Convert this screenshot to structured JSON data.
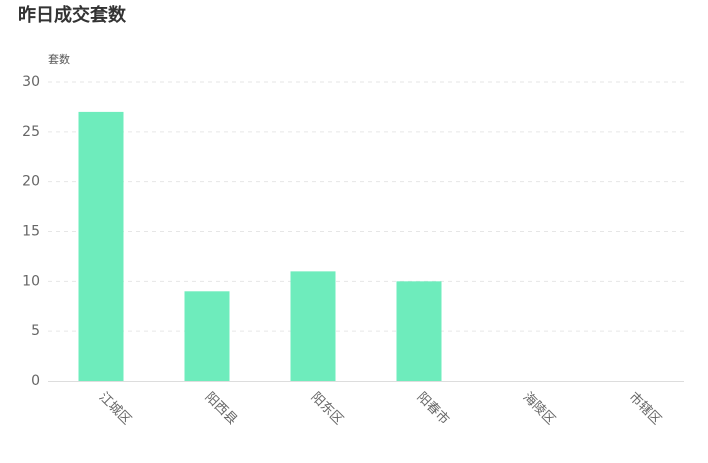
{
  "chart_data": {
    "type": "bar",
    "title": "昨日成交套数",
    "y_label": "套数",
    "categories": [
      "江城区",
      "阳西县",
      "阳东区",
      "阳春市",
      "海陵区",
      "市辖区"
    ],
    "values": [
      27,
      9,
      11,
      10,
      0,
      0
    ],
    "color": "#6eecbc",
    "ylim": [
      0,
      30
    ],
    "yticks": [
      0,
      5,
      10,
      15,
      20,
      25,
      30
    ],
    "grid": true
  }
}
